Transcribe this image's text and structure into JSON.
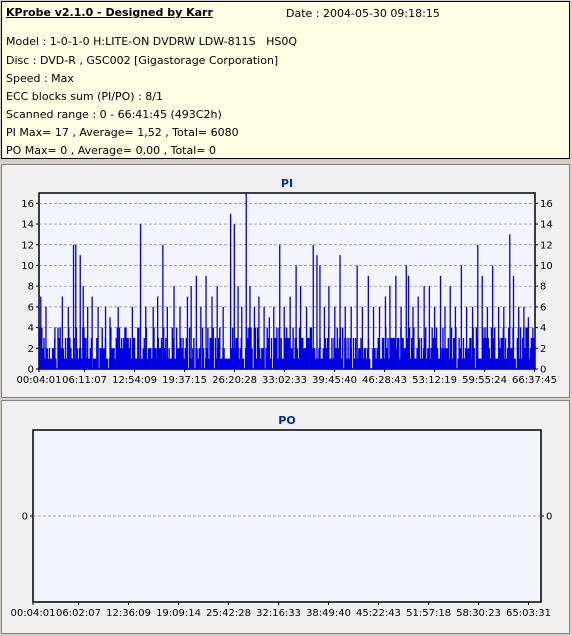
{
  "header": {
    "title": "KProbe v2.1.0 - Designed by Karr",
    "date": "Date : 2004-05-30 09:18:15",
    "lines": [
      "Model : 1-0-1-0 H:LITE-ON DVDRW LDW-811S   HS0Q",
      "Disc : DVD-R , GSC002 [Gigastorage Corporation]",
      "Speed : Max",
      "ECC blocks sum (PI/PO) : 8/1",
      "Scanned range : 0 - 66:41:45 (493C2h)",
      "PI Max= 17 , Average= 1,52 , Total= 6080",
      "PO Max= 0 , Average= 0,00 , Total= 0"
    ]
  },
  "colors": {
    "plot_bg": "#f4f4ff",
    "pi_bars": "#0000e0",
    "grid": "#7f7f9f",
    "title": "#0b2a8c"
  },
  "chart_data": [
    {
      "type": "bar",
      "title": "PI",
      "ylim": [
        0,
        17
      ],
      "yticks": [
        0,
        2,
        4,
        6,
        8,
        10,
        12,
        14,
        16
      ],
      "grid": true,
      "x_range_minutes": [
        0.067,
        66.696
      ],
      "xtick_labels": [
        "00:04:01",
        "06:11:07",
        "12:54:09",
        "19:37:15",
        "26:20:28",
        "33:02:33",
        "39:45:40",
        "46:28:43",
        "53:12:19",
        "59:55:24",
        "66:37:45"
      ],
      "xtick_minutes": [
        0.067,
        6.185,
        12.903,
        19.621,
        26.341,
        33.043,
        39.761,
        46.479,
        53.205,
        59.923,
        66.629
      ],
      "baseline_level": [
        2,
        4
      ],
      "peaks": [
        {
          "x": 0.3,
          "y": 7
        },
        {
          "x": 1.0,
          "y": 6
        },
        {
          "x": 2.2,
          "y": 4
        },
        {
          "x": 3.2,
          "y": 7
        },
        {
          "x": 4.0,
          "y": 6
        },
        {
          "x": 4.7,
          "y": 12
        },
        {
          "x": 5.0,
          "y": 12
        },
        {
          "x": 5.6,
          "y": 11
        },
        {
          "x": 6.0,
          "y": 8
        },
        {
          "x": 6.6,
          "y": 6
        },
        {
          "x": 7.2,
          "y": 7
        },
        {
          "x": 8.0,
          "y": 6
        },
        {
          "x": 9.0,
          "y": 6
        },
        {
          "x": 9.6,
          "y": 5
        },
        {
          "x": 10.7,
          "y": 6
        },
        {
          "x": 11.6,
          "y": 4
        },
        {
          "x": 12.6,
          "y": 6
        },
        {
          "x": 13.7,
          "y": 14
        },
        {
          "x": 14.4,
          "y": 6
        },
        {
          "x": 15.4,
          "y": 6
        },
        {
          "x": 16.0,
          "y": 7
        },
        {
          "x": 16.7,
          "y": 12
        },
        {
          "x": 17.3,
          "y": 6
        },
        {
          "x": 18.2,
          "y": 8
        },
        {
          "x": 19.0,
          "y": 6
        },
        {
          "x": 20.0,
          "y": 7
        },
        {
          "x": 20.5,
          "y": 8
        },
        {
          "x": 21.2,
          "y": 9
        },
        {
          "x": 21.8,
          "y": 6
        },
        {
          "x": 22.5,
          "y": 9
        },
        {
          "x": 23.3,
          "y": 7
        },
        {
          "x": 24.0,
          "y": 8
        },
        {
          "x": 24.8,
          "y": 6
        },
        {
          "x": 25.8,
          "y": 15
        },
        {
          "x": 26.3,
          "y": 14
        },
        {
          "x": 26.8,
          "y": 8
        },
        {
          "x": 27.3,
          "y": 6
        },
        {
          "x": 27.9,
          "y": 17
        },
        {
          "x": 28.4,
          "y": 8
        },
        {
          "x": 29.0,
          "y": 6
        },
        {
          "x": 29.6,
          "y": 7
        },
        {
          "x": 30.3,
          "y": 6
        },
        {
          "x": 31.0,
          "y": 5
        },
        {
          "x": 31.6,
          "y": 6
        },
        {
          "x": 32.4,
          "y": 12
        },
        {
          "x": 33.0,
          "y": 6
        },
        {
          "x": 33.8,
          "y": 7
        },
        {
          "x": 34.6,
          "y": 10
        },
        {
          "x": 35.2,
          "y": 8
        },
        {
          "x": 36.0,
          "y": 6
        },
        {
          "x": 36.9,
          "y": 12
        },
        {
          "x": 37.4,
          "y": 11
        },
        {
          "x": 37.8,
          "y": 10
        },
        {
          "x": 38.4,
          "y": 6
        },
        {
          "x": 39.0,
          "y": 8
        },
        {
          "x": 39.8,
          "y": 6
        },
        {
          "x": 40.5,
          "y": 11
        },
        {
          "x": 41.2,
          "y": 6
        },
        {
          "x": 42.0,
          "y": 6
        },
        {
          "x": 42.8,
          "y": 10
        },
        {
          "x": 43.5,
          "y": 6
        },
        {
          "x": 44.3,
          "y": 9
        },
        {
          "x": 45.0,
          "y": 6
        },
        {
          "x": 45.8,
          "y": 6
        },
        {
          "x": 46.6,
          "y": 7
        },
        {
          "x": 47.2,
          "y": 8
        },
        {
          "x": 48.0,
          "y": 9
        },
        {
          "x": 48.7,
          "y": 6
        },
        {
          "x": 49.4,
          "y": 10
        },
        {
          "x": 49.7,
          "y": 9
        },
        {
          "x": 50.3,
          "y": 6
        },
        {
          "x": 51.0,
          "y": 7
        },
        {
          "x": 51.8,
          "y": 8
        },
        {
          "x": 52.5,
          "y": 8
        },
        {
          "x": 53.2,
          "y": 6
        },
        {
          "x": 54.0,
          "y": 9
        },
        {
          "x": 54.6,
          "y": 6
        },
        {
          "x": 55.3,
          "y": 8
        },
        {
          "x": 56.0,
          "y": 6
        },
        {
          "x": 56.8,
          "y": 10
        },
        {
          "x": 57.5,
          "y": 6
        },
        {
          "x": 58.3,
          "y": 6
        },
        {
          "x": 59.0,
          "y": 12
        },
        {
          "x": 59.6,
          "y": 9
        },
        {
          "x": 60.3,
          "y": 6
        },
        {
          "x": 61.0,
          "y": 10
        },
        {
          "x": 61.8,
          "y": 6
        },
        {
          "x": 62.5,
          "y": 6
        },
        {
          "x": 63.3,
          "y": 13
        },
        {
          "x": 63.8,
          "y": 9
        },
        {
          "x": 64.5,
          "y": 6
        },
        {
          "x": 65.2,
          "y": 6
        },
        {
          "x": 65.8,
          "y": 5
        },
        {
          "x": 66.4,
          "y": 4
        }
      ],
      "bar_count": 460
    },
    {
      "type": "bar",
      "title": "PO",
      "ylim": [
        -1,
        1
      ],
      "yticks": [
        0
      ],
      "grid": true,
      "x_range_minutes": [
        0.067,
        66.696
      ],
      "xtick_labels": [
        "00:04:01",
        "06:02:07",
        "12:36:09",
        "19:09:14",
        "25:42:28",
        "32:16:33",
        "38:49:40",
        "45:22:43",
        "51:57:18",
        "58:30:23",
        "65:03:31"
      ],
      "xtick_minutes": [
        0.067,
        6.035,
        12.603,
        19.154,
        25.708,
        32.276,
        38.828,
        45.379,
        51.955,
        58.506,
        65.059
      ],
      "values": []
    }
  ]
}
